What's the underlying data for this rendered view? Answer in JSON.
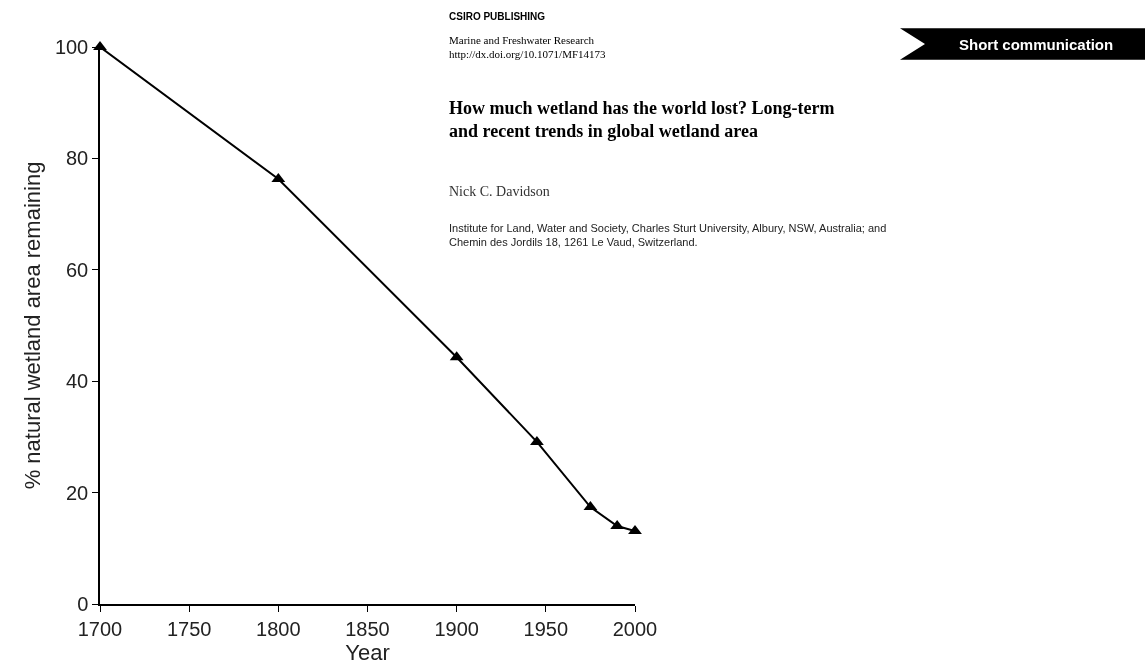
{
  "chart_data": {
    "type": "line",
    "xlabel": "Year",
    "ylabel": "% natural wetland area remaining",
    "x": [
      1700,
      1800,
      1900,
      1945,
      1975,
      1990,
      2000
    ],
    "series": [
      {
        "color": "#000000",
        "values": [
          100,
          76.3,
          44.3,
          29.1,
          17.4,
          14.0,
          13.1
        ]
      }
    ],
    "xlim": [
      1700,
      2000
    ],
    "xticks": [
      1700,
      1750,
      1800,
      1850,
      1900,
      1950,
      2000
    ],
    "ylim": [
      0,
      100
    ],
    "yticks": [
      0,
      20,
      40,
      60,
      80,
      100
    ],
    "marker": "triangle",
    "line_style": "solid",
    "legend": false,
    "annotations": [
      "CSIRO PUBLISHING",
      "Marine and Freshwater Research",
      "http://dx.doi.org/10.1071/MF14173",
      "Short communication",
      "How much wetland has the world lost? Long-term\nand recent trends in global wetland area",
      "Nick C. Davidson",
      "Institute for Land, Water and Society, Charles Sturt University, Albury, NSW, Australia; and\nChemin des Jordils 18, 1261 Le Vaud, Switzerland."
    ]
  }
}
